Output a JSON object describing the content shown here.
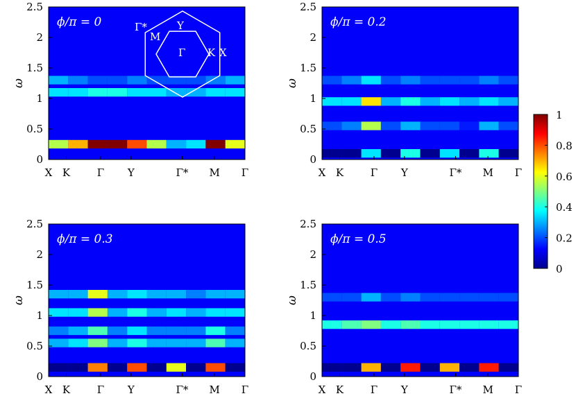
{
  "colormap": {
    "stops": [
      "#00008f",
      "#0000ff",
      "#00ffff",
      "#ffff00",
      "#ff0000",
      "#800000"
    ],
    "ticks": [
      "1",
      "0.8",
      "0.6",
      "0.4",
      "0.2",
      "0"
    ],
    "range": [
      0,
      1
    ]
  },
  "x_tick_labels": [
    "X",
    "K",
    "Γ",
    "Y",
    "Γ*",
    "M",
    "Γ"
  ],
  "inset_labels": [
    "Γ*",
    "M",
    "Y",
    "Γ",
    "K",
    "X"
  ],
  "chart_data": [
    {
      "type": "heatmap",
      "label": "ϕ/π = 0",
      "ylabel": "ω",
      "ylim": [
        0,
        2.5
      ],
      "yticks": [
        "0",
        "0.5",
        "1",
        "1.5",
        "2",
        "2.5"
      ],
      "x_ticks": [
        "X",
        "K",
        "Γ",
        "Y",
        "Γ*",
        "M",
        "Γ"
      ],
      "bands": [
        {
          "omega": 0.25,
          "intensity": [
            0.55,
            0.7,
            1.0,
            1.0,
            0.8,
            0.55,
            0.3,
            0.35,
            1.0,
            0.6
          ]
        },
        {
          "omega": 1.1,
          "intensity": [
            0.35,
            0.35,
            0.4,
            0.4,
            0.35,
            0.35,
            0.3,
            0.3,
            0.35,
            0.35
          ]
        },
        {
          "omega": 1.3,
          "intensity": [
            0.3,
            0.25,
            0.2,
            0.2,
            0.25,
            0.2,
            0.2,
            0.2,
            0.25,
            0.3
          ]
        }
      ]
    },
    {
      "type": "heatmap",
      "label": "ϕ/π = 0.2",
      "ylabel": "ω",
      "ylim": [
        0,
        2.5
      ],
      "yticks": [
        "0",
        "0.5",
        "1",
        "1.5",
        "2",
        "2.5"
      ],
      "x_ticks": [
        "X",
        "K",
        "Γ",
        "Y",
        "Γ*",
        "M",
        "Γ"
      ],
      "bands": [
        {
          "omega": 0.1,
          "intensity": [
            0.0,
            0.0,
            0.35,
            0.0,
            0.4,
            0.0,
            0.35,
            0.0,
            0.4,
            0.0
          ]
        },
        {
          "omega": 0.55,
          "intensity": [
            0.2,
            0.25,
            0.55,
            0.2,
            0.3,
            0.2,
            0.2,
            0.15,
            0.3,
            0.2
          ]
        },
        {
          "omega": 0.95,
          "intensity": [
            0.35,
            0.35,
            0.65,
            0.3,
            0.4,
            0.3,
            0.35,
            0.3,
            0.35,
            0.3
          ]
        },
        {
          "omega": 1.3,
          "intensity": [
            0.2,
            0.25,
            0.35,
            0.2,
            0.25,
            0.2,
            0.2,
            0.2,
            0.25,
            0.2
          ]
        }
      ]
    },
    {
      "type": "heatmap",
      "label": "ϕ/π = 0.3",
      "ylabel": "ω",
      "ylim": [
        0,
        2.5
      ],
      "yticks": [
        "0",
        "0.5",
        "1",
        "1.5",
        "2",
        "2.5"
      ],
      "x_ticks": [
        "X",
        "K",
        "Γ",
        "Y",
        "Γ*",
        "M",
        "Γ"
      ],
      "bands": [
        {
          "omega": 0.15,
          "intensity": [
            0.0,
            0.0,
            0.75,
            0.0,
            0.8,
            0.0,
            0.6,
            0.0,
            0.8,
            0.0
          ]
        },
        {
          "omega": 0.55,
          "intensity": [
            0.3,
            0.35,
            0.5,
            0.3,
            0.4,
            0.3,
            0.3,
            0.3,
            0.45,
            0.3
          ]
        },
        {
          "omega": 0.75,
          "intensity": [
            0.25,
            0.3,
            0.45,
            0.25,
            0.35,
            0.25,
            0.25,
            0.25,
            0.4,
            0.25
          ]
        },
        {
          "omega": 1.05,
          "intensity": [
            0.35,
            0.35,
            0.55,
            0.3,
            0.4,
            0.3,
            0.35,
            0.3,
            0.35,
            0.35
          ]
        },
        {
          "omega": 1.35,
          "intensity": [
            0.3,
            0.3,
            0.6,
            0.3,
            0.35,
            0.3,
            0.3,
            0.25,
            0.3,
            0.3
          ]
        }
      ]
    },
    {
      "type": "heatmap",
      "label": "ϕ/π = 0.5",
      "ylabel": "ω",
      "ylim": [
        0,
        2.5
      ],
      "yticks": [
        "0",
        "0.5",
        "1",
        "1.5",
        "2",
        "2.5"
      ],
      "x_ticks": [
        "X",
        "K",
        "Γ",
        "Y",
        "Γ*",
        "M",
        "Γ"
      ],
      "bands": [
        {
          "omega": 0.15,
          "intensity": [
            0.0,
            0.0,
            0.7,
            0.0,
            0.85,
            0.0,
            0.7,
            0.0,
            0.85,
            0.0
          ]
        },
        {
          "omega": 0.85,
          "intensity": [
            0.4,
            0.45,
            0.5,
            0.4,
            0.45,
            0.4,
            0.4,
            0.4,
            0.4,
            0.4
          ]
        },
        {
          "omega": 1.3,
          "intensity": [
            0.2,
            0.2,
            0.3,
            0.2,
            0.25,
            0.2,
            0.2,
            0.2,
            0.2,
            0.2
          ]
        }
      ]
    }
  ]
}
